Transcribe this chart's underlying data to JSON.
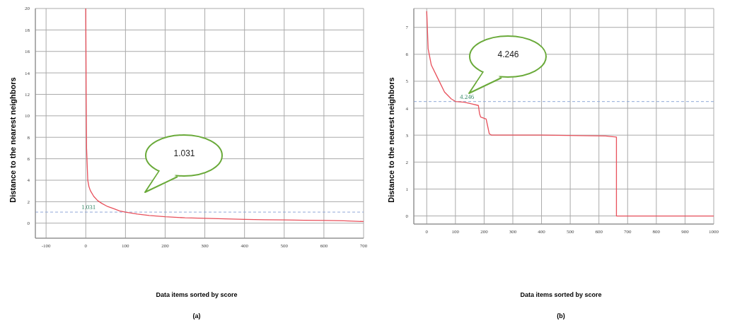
{
  "chart_data": [
    {
      "type": "line",
      "xlabel": "Data items sorted by score",
      "ylabel": "Distance to the nearest neighbors",
      "annotations": [
        "1.031",
        "(a)"
      ],
      "series": [
        {
          "color": "#e8505b",
          "x": [
            0,
            1,
            2,
            3,
            5,
            8,
            12,
            20,
            30,
            40,
            55,
            70,
            85,
            100,
            130,
            160,
            200,
            250,
            300,
            350,
            400,
            450,
            500,
            550,
            600,
            650,
            700
          ],
          "values": [
            20,
            12,
            7,
            6,
            4,
            3.4,
            3,
            2.5,
            2.1,
            1.85,
            1.55,
            1.35,
            1.15,
            1.03,
            0.85,
            0.72,
            0.6,
            0.5,
            0.45,
            0.4,
            0.35,
            0.32,
            0.3,
            0.27,
            0.25,
            0.22,
            0.15
          ]
        }
      ],
      "xlim": [
        -127,
        700
      ],
      "xticks": [
        -100,
        0,
        100,
        200,
        300,
        400,
        500,
        600,
        700
      ],
      "ylim": [
        -1.4,
        20
      ],
      "yticks": [
        0,
        2,
        4,
        6,
        8,
        10,
        12,
        14,
        16,
        18,
        20
      ],
      "ref_lines": [
        {
          "axis": "y",
          "value": 1.031,
          "label": "1.031",
          "color": "#8fa8d8",
          "line_style": "dashed"
        }
      ],
      "grid": true,
      "marker": "none",
      "line_style": "solid"
    },
    {
      "type": "line",
      "xlabel": "Data items sorted by score",
      "ylabel": "Distance to the nearest neighbors",
      "annotations": [
        "4.246",
        "(b)"
      ],
      "series": [
        {
          "color": "#e8505b",
          "x": [
            0,
            5,
            16,
            39,
            62,
            85,
            100,
            131,
            161,
            180,
            184,
            188,
            207,
            213,
            218,
            226,
            400,
            623,
            640,
            661,
            661,
            1000
          ],
          "values": [
            7.6,
            6.2,
            5.6,
            5.1,
            4.6,
            4.35,
            4.25,
            4.22,
            4.15,
            4.1,
            3.8,
            3.67,
            3.6,
            3.3,
            3.05,
            3.0,
            3.0,
            2.97,
            2.95,
            2.93,
            0,
            0
          ]
        }
      ],
      "xlim": [
        -45,
        1000
      ],
      "xticks": [
        0,
        100,
        200,
        300,
        400,
        500,
        600,
        700,
        800,
        900,
        1000
      ],
      "ylim": [
        -0.3,
        7.7
      ],
      "yticks": [
        0,
        1,
        2,
        3,
        4,
        5,
        6,
        7
      ],
      "ref_lines": [
        {
          "axis": "y",
          "value": 4.246,
          "label": "4.246",
          "color": "#8fa8d8",
          "line_style": "dashed"
        }
      ],
      "grid": true,
      "marker": "none",
      "line_style": "solid"
    }
  ]
}
